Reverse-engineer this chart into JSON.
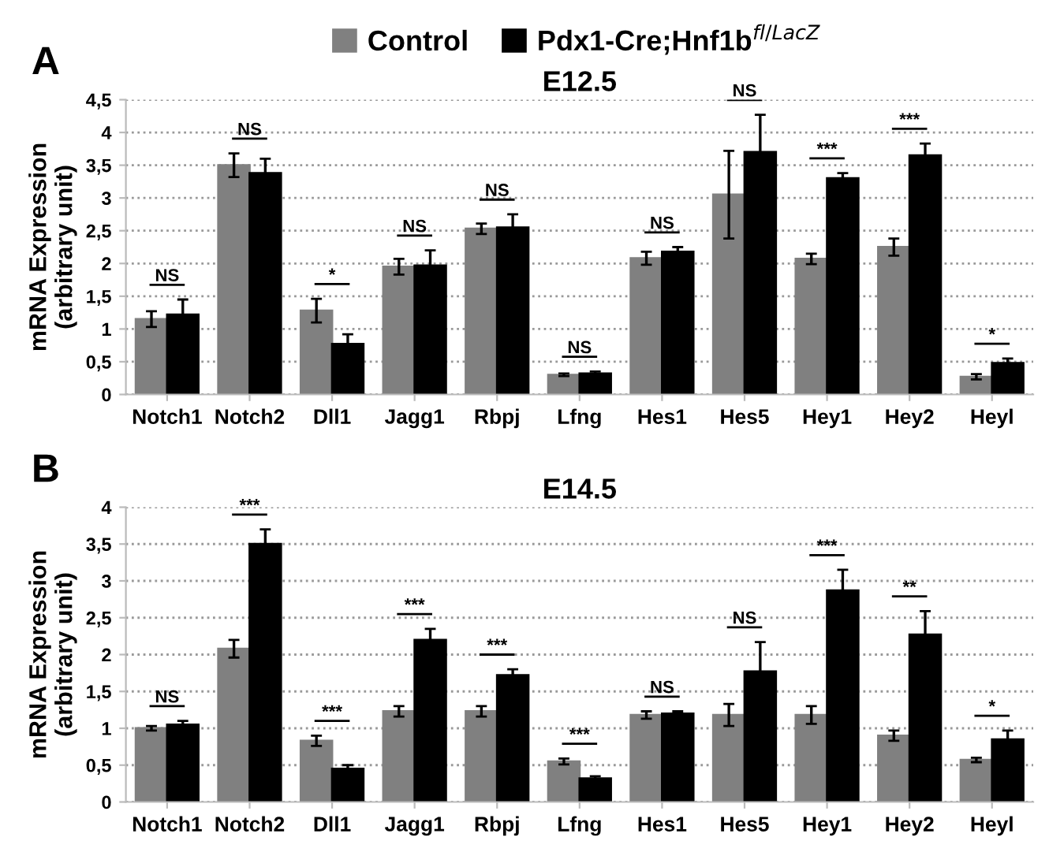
{
  "chart_data": [
    {
      "type": "bar",
      "title": "E12.5",
      "ylabel": "mRNA Expression\n(arbitrary unit)",
      "legend": "top",
      "grid": "y",
      "categories": [
        "Notch1",
        "Notch2",
        "Dll1",
        "Jagg1",
        "Rbpj",
        "Lfng",
        "Hes1",
        "Hes5",
        "Hey1",
        "Hey2",
        "Heyl"
      ],
      "series": [
        {
          "name": "Control",
          "color": "#808080",
          "values": [
            1.15,
            3.5,
            1.28,
            1.95,
            2.53,
            0.3,
            2.08,
            3.05,
            2.07,
            2.25,
            0.27
          ],
          "errors": [
            0.12,
            0.18,
            0.18,
            0.12,
            0.08,
            0.02,
            0.1,
            0.67,
            0.08,
            0.13,
            0.04
          ]
        },
        {
          "name": "Pdx1-Cre;Hnf1b$^{fl/LacZ}$",
          "color": "#000000",
          "values": [
            1.22,
            3.38,
            0.77,
            1.97,
            2.55,
            0.32,
            2.18,
            3.7,
            3.3,
            3.65,
            0.48
          ],
          "errors": [
            0.23,
            0.22,
            0.15,
            0.23,
            0.2,
            0.03,
            0.07,
            0.57,
            0.08,
            0.18,
            0.07
          ]
        }
      ],
      "ylim": [
        0,
        4.5
      ],
      "yticks": [
        0,
        {
          "value": 0.5,
          "label": "0,5"
        },
        1,
        {
          "value": 1.5,
          "label": "1,5"
        },
        2,
        {
          "value": 2.5,
          "label": "2,5"
        },
        3,
        {
          "value": 3.5,
          "label": "3,5"
        },
        4,
        {
          "value": 4.5,
          "label": "4,5"
        }
      ],
      "annotations": [
        "A",
        "NS",
        "NS",
        "*",
        "NS",
        "NS",
        "NS",
        "NS",
        "NS",
        "***",
        "***",
        "*"
      ]
    },
    {
      "type": "bar",
      "title": "E14.5",
      "ylabel": "mRNA Expression\n(arbitrary unit)",
      "grid": "y",
      "categories": [
        "Notch1",
        "Notch2",
        "Dll1",
        "Jagg1",
        "Rbpj",
        "Lfng",
        "Hes1",
        "Hes5",
        "Hey1",
        "Hey2",
        "Heyl"
      ],
      "series": [
        {
          "color": "#808080",
          "values": [
            1.0,
            2.08,
            0.83,
            1.23,
            1.23,
            0.55,
            1.18,
            1.18,
            1.18,
            0.9,
            0.57
          ],
          "errors": [
            0.03,
            0.12,
            0.07,
            0.07,
            0.07,
            0.04,
            0.05,
            0.15,
            0.12,
            0.07,
            0.03
          ]
        },
        {
          "color": "#000000",
          "values": [
            1.05,
            3.5,
            0.45,
            2.2,
            1.72,
            0.32,
            1.2,
            1.77,
            2.87,
            2.27,
            0.85
          ],
          "errors": [
            0.05,
            0.2,
            0.05,
            0.15,
            0.08,
            0.03,
            0.03,
            0.4,
            0.28,
            0.32,
            0.12
          ]
        }
      ],
      "ylim": [
        0,
        4
      ],
      "yticks": [
        0,
        {
          "value": 0.5,
          "label": "0,5"
        },
        1,
        {
          "value": 1.5,
          "label": "1,5"
        },
        2,
        {
          "value": 2.5,
          "label": "2,5"
        },
        3,
        {
          "value": 3.5,
          "label": "3,5"
        },
        4
      ],
      "annotations": [
        "B",
        "NS",
        "***",
        "***",
        "***",
        "***",
        "***",
        "NS",
        "NS",
        "***",
        "**",
        "*"
      ]
    }
  ]
}
